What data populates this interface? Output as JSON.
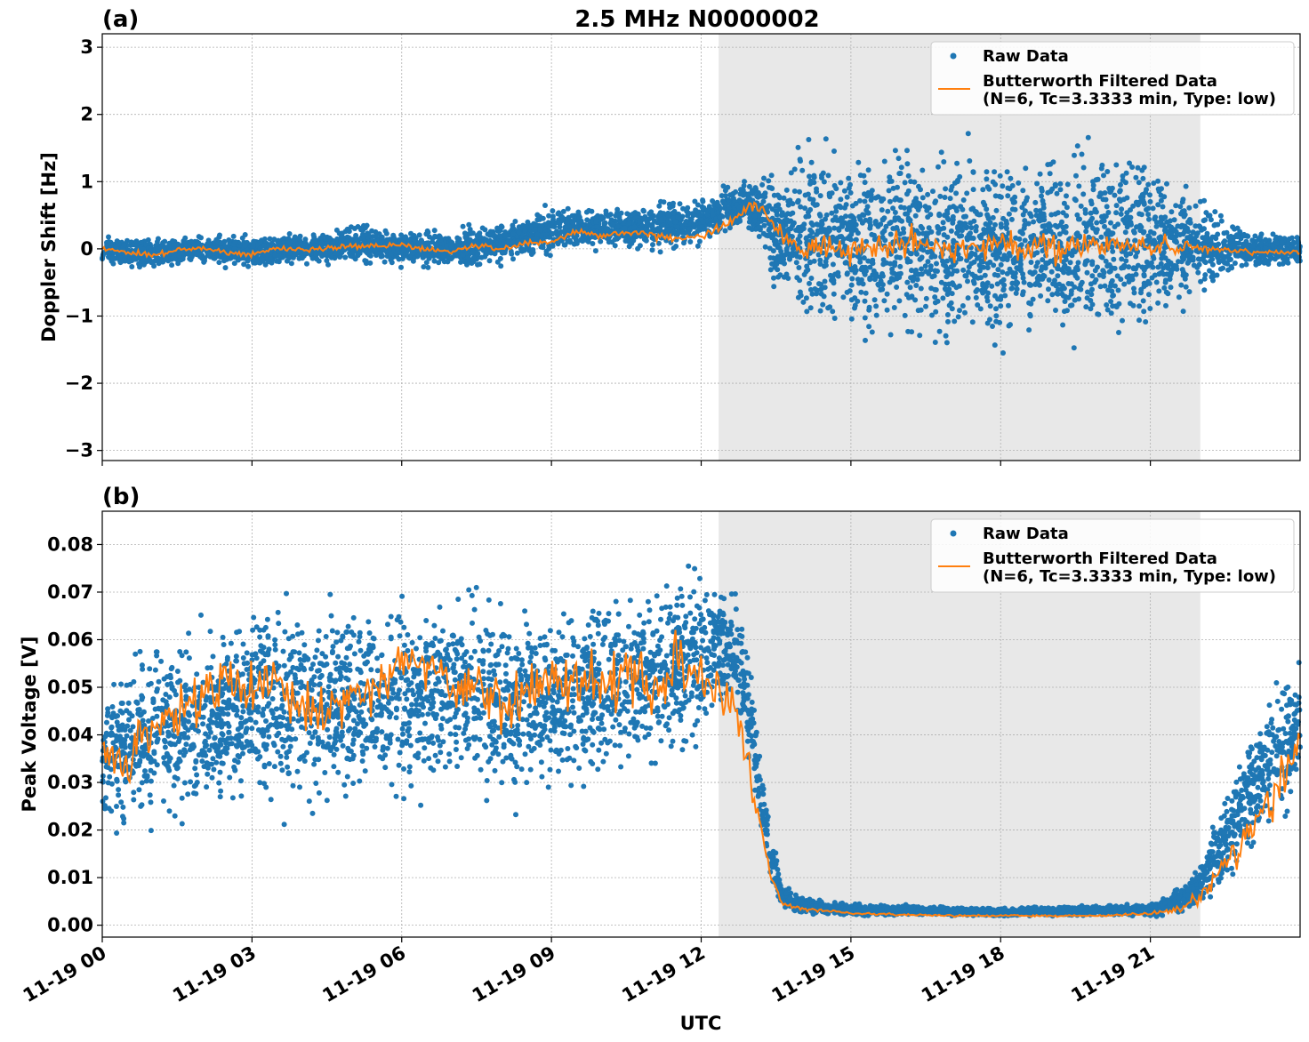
{
  "title": "2.5 MHz N0000002",
  "xlabel": "UTC",
  "colors": {
    "raw": "#1f77b4",
    "filtered": "#ff7f0e",
    "shade": "#e8e8e8",
    "grid": "#b0b0b0"
  },
  "legend": {
    "raw_label": "Raw Data",
    "filtered_label_line1": "Butterworth Filtered Data",
    "filtered_label_line2": "(N=6, Tc=3.3333 min, Type: low)"
  },
  "x_ticks": [
    "11-19 00",
    "11-19 03",
    "11-19 06",
    "11-19 09",
    "11-19 12",
    "11-19 15",
    "11-19 18",
    "11-19 21"
  ],
  "chart_data": [
    {
      "type": "scatter",
      "panel_label": "(a)",
      "title": "2.5 MHz N0000002",
      "xlabel": "",
      "ylabel": "Doppler Shift [Hz]",
      "x_unit": "hours UTC",
      "xlim": [
        0,
        24
      ],
      "ylim": [
        -3.15,
        3.2
      ],
      "y_ticks": [
        "−3",
        "−2",
        "−1",
        "0",
        "1",
        "2",
        "3"
      ],
      "y_tick_values": [
        -3,
        -2,
        -1,
        0,
        1,
        2,
        3
      ],
      "grid": true,
      "legend_position": "top-right",
      "shaded_x_range": [
        12.35,
        22.0
      ],
      "series": [
        {
          "name": "Raw Data",
          "style": "points",
          "x": [
            0,
            1,
            2,
            3,
            4,
            5,
            6,
            7,
            8,
            9,
            10,
            11,
            12,
            12.5,
            13,
            13.5,
            14,
            15,
            16,
            17,
            18,
            19,
            20,
            21,
            22,
            23,
            24
          ],
          "low": [
            -0.35,
            -0.4,
            -0.3,
            -0.4,
            -0.3,
            -0.3,
            -0.35,
            -0.4,
            -0.35,
            -0.2,
            -0.1,
            -0.15,
            -0.1,
            0.0,
            0.1,
            -1.0,
            -1.6,
            -1.9,
            -2.0,
            -2.0,
            -2.0,
            -2.0,
            -1.8,
            -1.8,
            -0.9,
            -0.4,
            -0.35
          ],
          "high": [
            0.3,
            0.25,
            0.3,
            0.3,
            0.3,
            0.45,
            0.4,
            0.4,
            0.5,
            0.8,
            0.7,
            0.8,
            0.9,
            1.1,
            1.2,
            1.5,
            2.0,
            2.2,
            2.2,
            2.1,
            2.1,
            2.1,
            2.0,
            2.0,
            1.0,
            0.4,
            0.3
          ]
        },
        {
          "name": "Butterworth Filtered Data",
          "style": "line",
          "x": [
            0,
            0.5,
            1,
            1.5,
            2,
            2.5,
            3,
            3.5,
            4,
            4.5,
            5,
            5.5,
            6,
            6.5,
            7,
            7.5,
            8,
            8.5,
            9,
            9.5,
            10,
            10.5,
            11,
            11.5,
            12,
            12.5,
            13,
            13.3,
            13.6,
            14,
            14.5,
            15,
            16,
            17,
            18,
            19,
            20,
            21,
            22,
            23,
            24
          ],
          "y": [
            0.0,
            -0.05,
            -0.1,
            -0.02,
            0.02,
            -0.05,
            -0.08,
            0.0,
            0.0,
            0.0,
            0.05,
            0.05,
            0.05,
            0.0,
            -0.05,
            0.05,
            0.0,
            0.1,
            0.1,
            0.25,
            0.2,
            0.25,
            0.2,
            0.15,
            0.2,
            0.35,
            0.65,
            0.55,
            0.2,
            0.0,
            0.05,
            -0.05,
            0.1,
            0.0,
            0.1,
            0.0,
            0.05,
            0.05,
            0.0,
            -0.05,
            -0.05
          ],
          "noise": [
            0.04,
            0.04,
            0.04,
            0.04,
            0.04,
            0.04,
            0.04,
            0.04,
            0.04,
            0.04,
            0.04,
            0.04,
            0.04,
            0.04,
            0.04,
            0.04,
            0.04,
            0.04,
            0.04,
            0.05,
            0.05,
            0.05,
            0.05,
            0.05,
            0.06,
            0.08,
            0.08,
            0.08,
            0.12,
            0.16,
            0.18,
            0.2,
            0.2,
            0.2,
            0.2,
            0.2,
            0.18,
            0.15,
            0.06,
            0.04,
            0.04
          ]
        }
      ]
    },
    {
      "type": "scatter",
      "panel_label": "(b)",
      "title": "",
      "xlabel": "UTC",
      "ylabel": "Peak Voltage [V]",
      "x_unit": "hours UTC",
      "xlim": [
        0,
        24
      ],
      "ylim": [
        -0.0025,
        0.087
      ],
      "y_ticks": [
        "0.00",
        "0.01",
        "0.02",
        "0.03",
        "0.04",
        "0.05",
        "0.06",
        "0.07",
        "0.08"
      ],
      "y_tick_values": [
        0,
        0.01,
        0.02,
        0.03,
        0.04,
        0.05,
        0.06,
        0.07,
        0.08
      ],
      "grid": true,
      "legend_position": "top-right",
      "shaded_x_range": [
        12.35,
        22.0
      ],
      "series": [
        {
          "name": "Raw Data",
          "style": "points",
          "x": [
            0,
            1,
            2,
            3,
            4,
            5,
            6,
            7,
            8,
            9,
            10,
            11,
            12,
            12.7,
            13.0,
            13.3,
            13.6,
            14,
            15,
            18,
            21,
            21.5,
            22,
            22.5,
            23,
            23.5,
            24
          ],
          "low": [
            0.009,
            0.01,
            0.015,
            0.02,
            0.012,
            0.018,
            0.015,
            0.02,
            0.018,
            0.02,
            0.022,
            0.025,
            0.03,
            0.04,
            0.025,
            0.01,
            0.002,
            0.0015,
            0.0015,
            0.0015,
            0.0015,
            0.0015,
            0.002,
            0.005,
            0.01,
            0.015,
            0.018
          ],
          "high": [
            0.06,
            0.068,
            0.07,
            0.075,
            0.08,
            0.074,
            0.078,
            0.08,
            0.075,
            0.074,
            0.078,
            0.082,
            0.083,
            0.075,
            0.06,
            0.03,
            0.01,
            0.007,
            0.005,
            0.004,
            0.005,
            0.008,
            0.015,
            0.03,
            0.045,
            0.058,
            0.062
          ]
        },
        {
          "name": "Butterworth Filtered Data",
          "style": "line",
          "x": [
            0,
            0.5,
            1,
            1.5,
            2,
            2.5,
            3,
            3.5,
            4,
            4.5,
            5,
            5.5,
            6,
            6.5,
            7,
            7.5,
            8,
            8.5,
            9,
            9.5,
            10,
            10.5,
            11,
            11.5,
            12,
            12.4,
            12.7,
            13.0,
            13.2,
            13.4,
            13.6,
            13.8,
            14,
            14.5,
            15,
            16,
            17,
            18,
            19,
            20,
            21,
            21.3,
            21.6,
            22,
            22.3,
            22.6,
            23,
            23.3,
            23.6,
            24
          ],
          "y": [
            0.037,
            0.035,
            0.04,
            0.045,
            0.048,
            0.05,
            0.05,
            0.052,
            0.045,
            0.046,
            0.048,
            0.05,
            0.056,
            0.055,
            0.052,
            0.05,
            0.048,
            0.05,
            0.052,
            0.05,
            0.052,
            0.053,
            0.05,
            0.055,
            0.053,
            0.05,
            0.045,
            0.03,
            0.02,
            0.01,
            0.005,
            0.004,
            0.0035,
            0.003,
            0.0025,
            0.0022,
            0.002,
            0.002,
            0.002,
            0.002,
            0.0025,
            0.003,
            0.0035,
            0.006,
            0.01,
            0.015,
            0.02,
            0.025,
            0.03,
            0.04
          ],
          "noise": [
            0.006,
            0.006,
            0.006,
            0.006,
            0.006,
            0.006,
            0.006,
            0.006,
            0.006,
            0.006,
            0.006,
            0.006,
            0.006,
            0.006,
            0.006,
            0.006,
            0.006,
            0.006,
            0.006,
            0.006,
            0.006,
            0.006,
            0.006,
            0.006,
            0.006,
            0.005,
            0.004,
            0.003,
            0.002,
            0.001,
            0.0008,
            0.0006,
            0.0005,
            0.0004,
            0.0003,
            0.0002,
            0.0002,
            0.0002,
            0.0002,
            0.0002,
            0.0003,
            0.0004,
            0.0008,
            0.0015,
            0.002,
            0.003,
            0.004,
            0.004,
            0.005,
            0.005
          ]
        }
      ]
    }
  ]
}
